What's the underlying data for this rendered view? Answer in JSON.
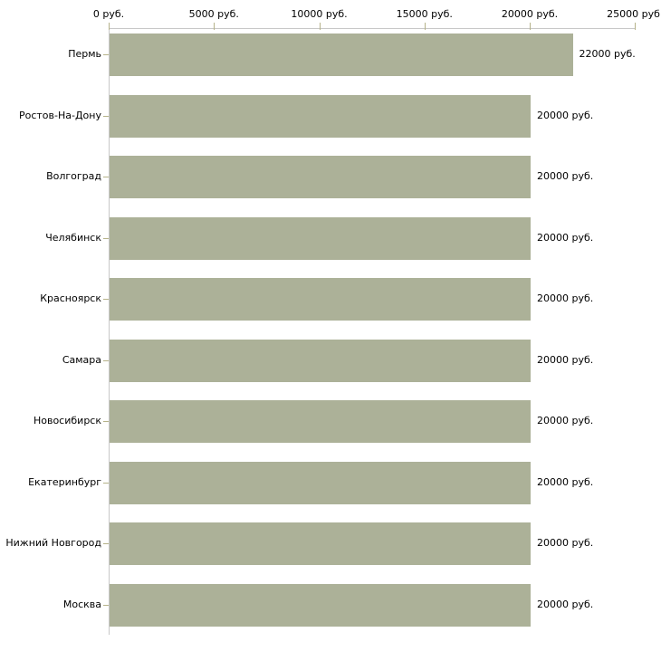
{
  "chart_data": {
    "type": "bar",
    "orientation": "horizontal",
    "title": "",
    "xlabel": "",
    "ylabel": "",
    "unit": "руб.",
    "categories": [
      "Пермь",
      "Ростов-На-Дону",
      "Волгоград",
      "Челябинск",
      "Красноярск",
      "Самара",
      "Новосибирск",
      "Екатеринбург",
      "Нижний Новгород",
      "Москва"
    ],
    "values": [
      22000,
      20000,
      20000,
      20000,
      20000,
      20000,
      20000,
      20000,
      20000,
      20000
    ],
    "value_labels": [
      "22000 руб.",
      "20000 руб.",
      "20000 руб.",
      "20000 руб.",
      "20000 руб.",
      "20000 руб.",
      "20000 руб.",
      "20000 руб.",
      "20000 руб.",
      "20000 руб."
    ],
    "xlim": [
      0,
      25000
    ],
    "x_ticks": [
      0,
      5000,
      10000,
      15000,
      20000,
      25000
    ],
    "x_tick_labels": [
      "0 руб.",
      "5000 руб.",
      "10000 руб.",
      "15000 руб.",
      "20000 руб.",
      "25000 руб."
    ],
    "grid": false,
    "legend": false,
    "colors": {
      "bar": "#acb198",
      "axis_line": "#c8c8c8",
      "tick": "#b5b289",
      "text": "#000000",
      "background": "#ffffff"
    }
  }
}
